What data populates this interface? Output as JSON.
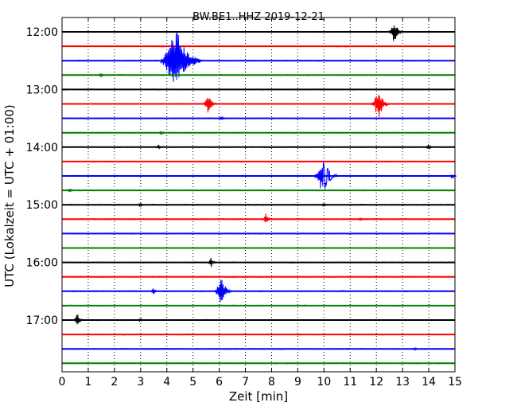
{
  "chart_data": {
    "type": "line",
    "title": "BW.BE1..HHZ 2019-12-21",
    "xlabel": "Zeit  [min]",
    "ylabel": "UTC (Lokalzeit = UTC + 01:00)",
    "xlim": [
      0,
      15
    ],
    "x_ticks": [
      "0",
      "1",
      "2",
      "3",
      "4",
      "5",
      "6",
      "7",
      "8",
      "9",
      "10",
      "11",
      "12",
      "13",
      "14",
      "15"
    ],
    "y_tick_labels": [
      "12:00",
      "13:00",
      "14:00",
      "15:00",
      "16:00",
      "17:00"
    ],
    "trace_interval_min": 15,
    "grid_x": true,
    "colors": [
      "#000000",
      "#ff0000",
      "#0000ff",
      "#008000"
    ],
    "traces": [
      {
        "start": "12:00",
        "events": [
          {
            "t": 12.7,
            "amp": 1.2
          }
        ]
      },
      {
        "start": "12:15",
        "events": []
      },
      {
        "start": "12:30",
        "events": [
          {
            "t": 4.4,
            "amp": 3.5
          },
          {
            "t": 4.3,
            "amp": 0.5
          }
        ]
      },
      {
        "start": "12:45",
        "events": [
          {
            "t": 1.5,
            "amp": 0.25
          }
        ]
      },
      {
        "start": "13:00",
        "events": []
      },
      {
        "start": "13:15",
        "events": [
          {
            "t": 5.6,
            "amp": 1.1
          },
          {
            "t": 12.1,
            "amp": 1.6
          }
        ]
      },
      {
        "start": "13:30",
        "events": [
          {
            "t": 6.1,
            "amp": 0.3
          }
        ]
      },
      {
        "start": "13:45",
        "events": [
          {
            "t": 3.8,
            "amp": 0.25
          }
        ]
      },
      {
        "start": "14:00",
        "events": [
          {
            "t": 3.7,
            "amp": 0.3
          },
          {
            "t": 14.0,
            "amp": 0.35
          }
        ]
      },
      {
        "start": "14:15",
        "events": []
      },
      {
        "start": "14:30",
        "events": [
          {
            "t": 10.0,
            "amp": 2.0
          },
          {
            "t": 14.9,
            "amp": 0.3
          }
        ]
      },
      {
        "start": "14:45",
        "events": [
          {
            "t": 0.3,
            "amp": 0.3
          }
        ]
      },
      {
        "start": "15:00",
        "events": [
          {
            "t": 3.0,
            "amp": 0.2
          },
          {
            "t": 10.0,
            "amp": 0.2
          }
        ]
      },
      {
        "start": "15:15",
        "events": [
          {
            "t": 7.8,
            "amp": 0.7
          },
          {
            "t": 11.4,
            "amp": 0.2
          }
        ]
      },
      {
        "start": "15:30",
        "events": []
      },
      {
        "start": "15:45",
        "events": []
      },
      {
        "start": "16:00",
        "events": [
          {
            "t": 5.7,
            "amp": 0.6
          }
        ]
      },
      {
        "start": "16:15",
        "events": []
      },
      {
        "start": "16:30",
        "events": [
          {
            "t": 3.5,
            "amp": 0.4
          },
          {
            "t": 6.1,
            "amp": 1.5
          }
        ]
      },
      {
        "start": "16:45",
        "events": []
      },
      {
        "start": "17:00",
        "events": [
          {
            "t": 0.6,
            "amp": 0.8
          },
          {
            "t": 3.0,
            "amp": 0.2
          }
        ]
      },
      {
        "start": "17:15",
        "events": []
      },
      {
        "start": "17:30",
        "events": [
          {
            "t": 13.5,
            "amp": 0.15
          }
        ]
      },
      {
        "start": "17:45",
        "events": []
      }
    ]
  }
}
